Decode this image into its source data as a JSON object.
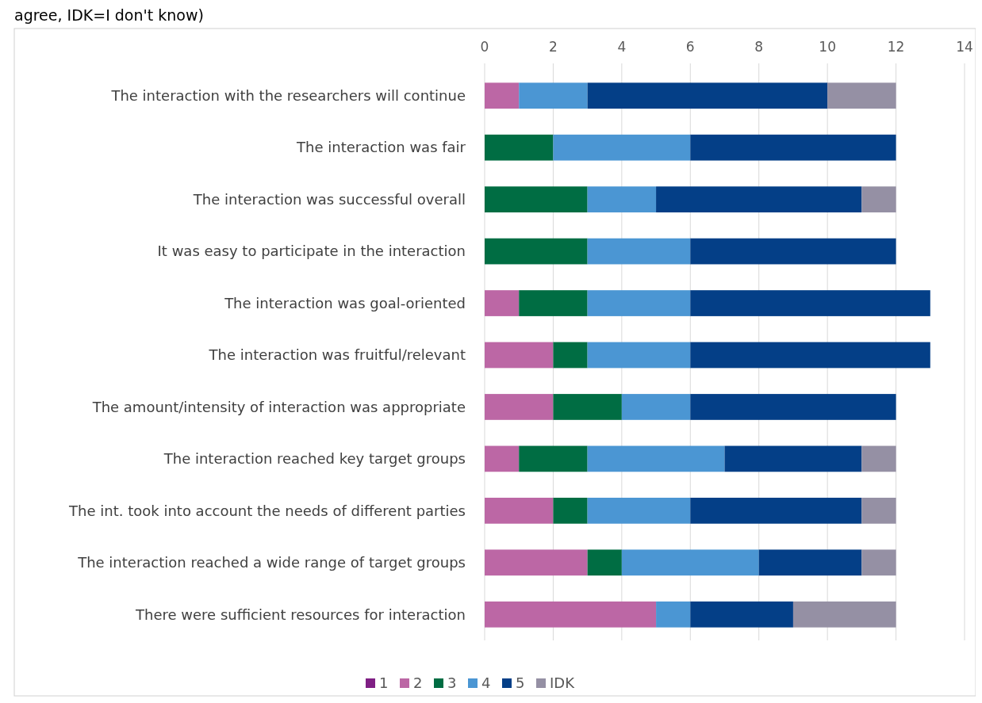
{
  "chart_data": {
    "type": "bar",
    "orientation": "horizontal",
    "stacked": true,
    "annotations": [
      "agree, IDK=I don't know)"
    ],
    "categories": [
      "The interaction with the researchers will continue",
      "The interaction was fair",
      "The interaction was successful overall",
      "It was easy to participate in the interaction",
      "The interaction was goal-oriented",
      "The interaction was fruitful/relevant",
      "The amount/intensity of interaction was appropriate",
      "The interaction reached key target groups",
      "The int. took into account the needs of different parties",
      "The interaction reached a wide range of target groups",
      "There were sufficient resources for interaction"
    ],
    "series": [
      {
        "name": "1",
        "color": "#7f1f84",
        "values": [
          0,
          0,
          0,
          0,
          0,
          0,
          0,
          0,
          0,
          0,
          0
        ]
      },
      {
        "name": "2",
        "color": "#bc67a5",
        "values": [
          1,
          0,
          0,
          0,
          1,
          2,
          2,
          1,
          2,
          3,
          5
        ]
      },
      {
        "name": "3",
        "color": "#006d43",
        "values": [
          0,
          2,
          3,
          3,
          2,
          1,
          2,
          2,
          1,
          1,
          0
        ]
      },
      {
        "name": "4",
        "color": "#4b96d3",
        "values": [
          2,
          4,
          2,
          3,
          3,
          3,
          2,
          4,
          3,
          4,
          1
        ]
      },
      {
        "name": "5",
        "color": "#043f87",
        "values": [
          7,
          6,
          6,
          6,
          7,
          7,
          6,
          4,
          5,
          3,
          3
        ]
      },
      {
        "name": "IDK",
        "color": "#9590a4",
        "values": [
          2,
          0,
          1,
          0,
          0,
          0,
          0,
          1,
          1,
          1,
          3
        ]
      }
    ],
    "xlim": [
      0,
      14
    ],
    "xticks": [
      0,
      2,
      4,
      6,
      8,
      10,
      12,
      14
    ],
    "grid": "x",
    "legend": "bottom"
  }
}
